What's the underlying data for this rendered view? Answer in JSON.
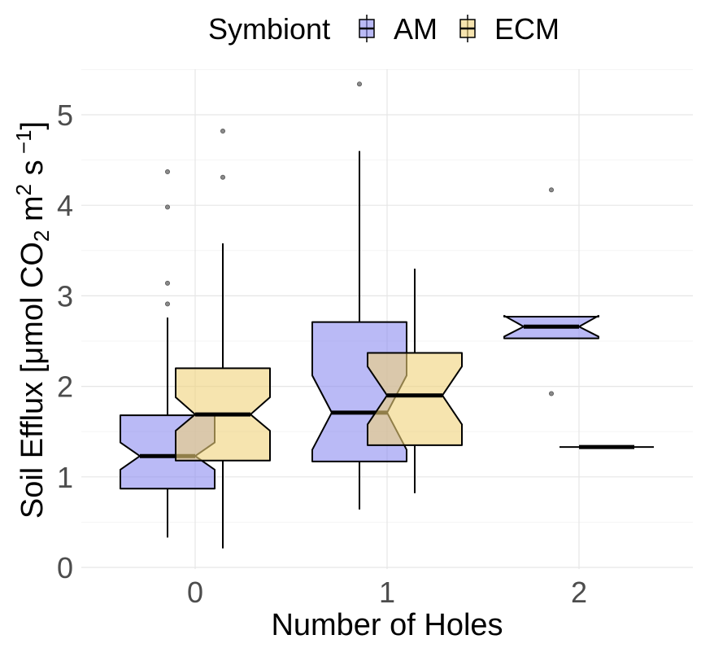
{
  "chart_data": {
    "type": "boxplot",
    "notched": true,
    "xlabel": "Number of Holes",
    "ylabel": {
      "prefix": "Soil Efflux  [",
      "mu": "μ",
      "mol": "mol CO",
      "sub2": "2",
      "m": " m",
      "sup2": "2",
      "s": "  s",
      "supneg": " −1",
      "close": "]"
    },
    "categories": [
      "0",
      "1",
      "2"
    ],
    "yticks": [
      "0",
      "1",
      "2",
      "3",
      "4",
      "5"
    ],
    "ylim": [
      0,
      5.55
    ],
    "grid": true,
    "legend": {
      "title": "Symbiont",
      "position": "top"
    },
    "series": [
      {
        "name": "AM",
        "color": "#8c8cf0",
        "boxes": [
          {
            "category": "0",
            "min": 0.33,
            "q1": 0.87,
            "median": 1.23,
            "q3": 1.68,
            "max": 2.76,
            "notch_lo": 1.08,
            "notch_hi": 1.38,
            "outliers": [
              2.91,
              3.14,
              3.98,
              4.37
            ]
          },
          {
            "category": "1",
            "min": 0.64,
            "q1": 1.17,
            "median": 1.71,
            "q3": 2.71,
            "max": 4.6,
            "notch_lo": 1.3,
            "notch_hi": 2.12,
            "outliers": [
              5.34
            ]
          },
          {
            "category": "2",
            "min": 2.53,
            "q1": 2.53,
            "median": 2.66,
            "q3": 2.77,
            "max": 2.77,
            "notch_lo": 2.55,
            "notch_hi": 2.78,
            "outliers": [
              1.92,
              4.17
            ]
          }
        ]
      },
      {
        "name": "ECM",
        "color": "#f0d27a",
        "boxes": [
          {
            "category": "0",
            "min": 0.21,
            "q1": 1.18,
            "median": 1.69,
            "q3": 2.2,
            "max": 3.58,
            "notch_lo": 1.51,
            "notch_hi": 1.88,
            "outliers": [
              4.31,
              4.82
            ]
          },
          {
            "category": "1",
            "min": 0.82,
            "q1": 1.35,
            "median": 1.9,
            "q3": 2.37,
            "max": 3.3,
            "notch_lo": 1.58,
            "notch_hi": 2.22,
            "outliers": []
          },
          {
            "category": "2",
            "min": 1.33,
            "q1": 1.33,
            "median": 1.33,
            "q3": 1.33,
            "max": 1.33,
            "notch_lo": 1.33,
            "notch_hi": 1.33,
            "outliers": []
          }
        ]
      }
    ]
  }
}
